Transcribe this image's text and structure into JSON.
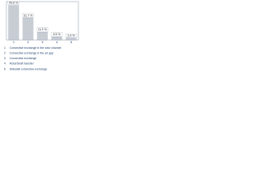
{
  "chart_data": {
    "type": "bar",
    "categories": [
      "1",
      "2",
      "3",
      "4",
      "5"
    ],
    "values": [
      49.6,
      31.7,
      11.3,
      4.5,
      2.9
    ],
    "value_labels": [
      "49.6 %",
      "31.7 %",
      "11.3 %",
      "4.5 %",
      "2.9 %"
    ],
    "color": "#c8cdd4",
    "ylim": [
      0,
      55
    ],
    "legend": [
      "Convective exchange in the rotor channel",
      "Convective exchange in the air gap",
      "Convective exchange",
      "Rotor/shaft transfer",
      "Sidewall convective exchange"
    ]
  }
}
